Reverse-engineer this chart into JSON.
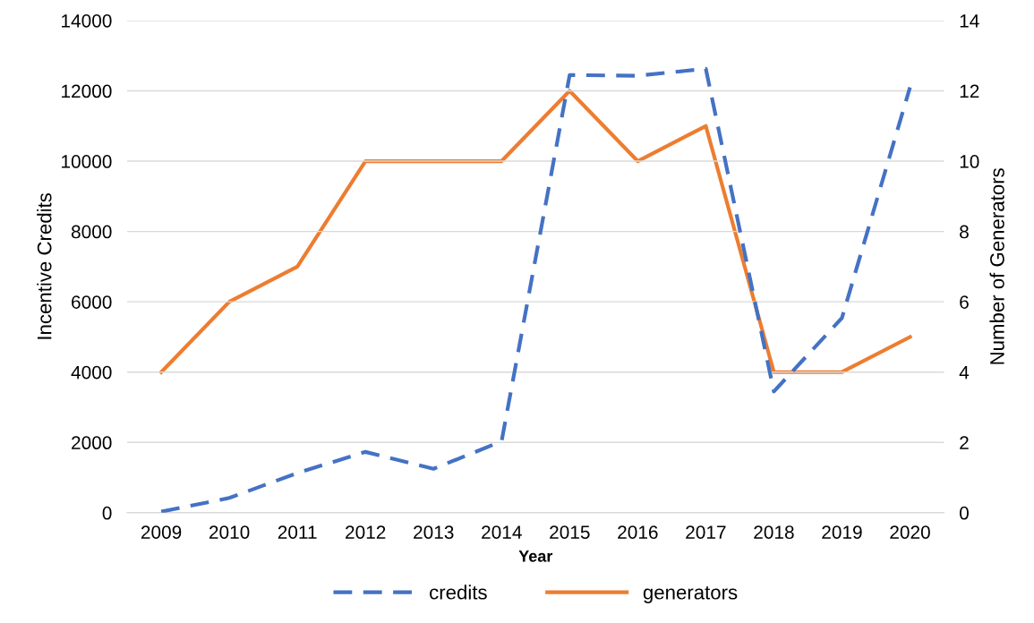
{
  "chart_data": {
    "type": "line",
    "xlabel": "Year",
    "ylabel": "Incentive Credits",
    "y2label": "Number of Generators",
    "categories": [
      "2009",
      "2010",
      "2011",
      "2012",
      "2013",
      "2014",
      "2015",
      "2016",
      "2017",
      "2018",
      "2019",
      "2020"
    ],
    "series": [
      {
        "name": "credits",
        "color": "#4472c4",
        "line_style": "dashed",
        "values": [
          30,
          420,
          1130,
          1730,
          1250,
          2030,
          12450,
          12430,
          12630,
          3450,
          5540,
          12100
        ]
      },
      {
        "name": "generators",
        "color": "#ed7d31",
        "line_style": "solid",
        "axis": "y2",
        "values": [
          4,
          6,
          7,
          10,
          10,
          10,
          12,
          10,
          11,
          4,
          4,
          5
        ]
      }
    ],
    "ylim": [
      0,
      14000
    ],
    "yticks": [
      0,
      2000,
      4000,
      6000,
      8000,
      10000,
      12000,
      14000
    ],
    "y2lim": [
      0,
      14
    ],
    "y2ticks": [
      0,
      2,
      4,
      6,
      8,
      10,
      12,
      14
    ],
    "grid": "y",
    "legend": "bottom",
    "marker": "none"
  }
}
